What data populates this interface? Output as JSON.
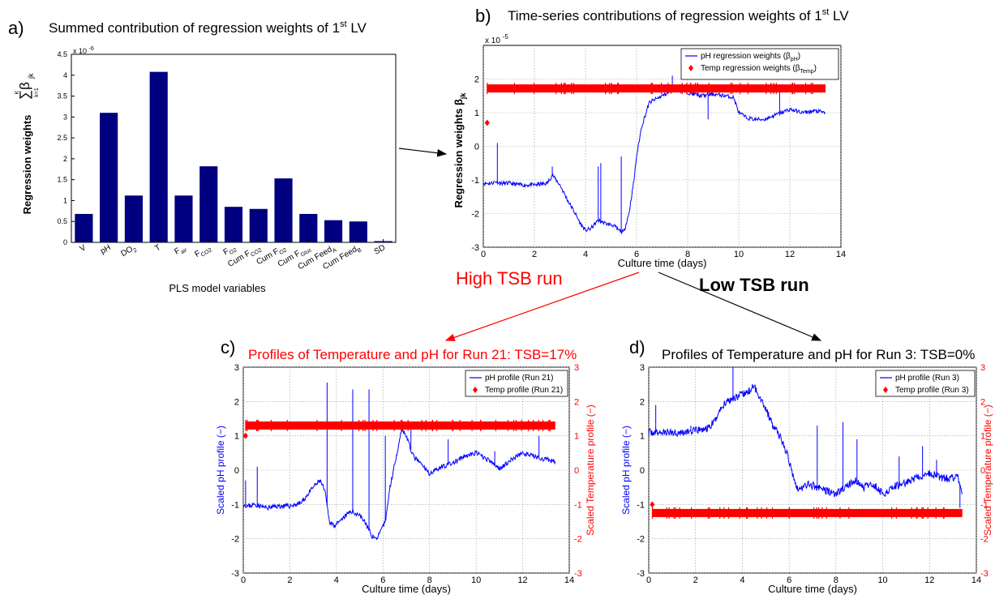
{
  "panels": {
    "a": {
      "letter": "a)",
      "title": "Summed contribution of regression weights of 1",
      "title_sup": "st",
      "title_end": " LV"
    },
    "b": {
      "letter": "b)",
      "title": "Time-series contributions of regression weights of 1",
      "title_sup": "st",
      "title_end": " LV"
    },
    "c": {
      "letter": "c)",
      "title": "Profiles of Temperature and pH  for Run 21: TSB=17%"
    },
    "d": {
      "letter": "d)",
      "title": "Profiles of Temperature and pH  for Run 3: TSB=0%"
    }
  },
  "annotations": {
    "high_tsb": "High TSB run",
    "low_tsb": "Low TSB run"
  },
  "colors": {
    "bar": "#000080",
    "ph": "#0000ff",
    "temp": "#ff0000",
    "red_text": "#ff0000"
  },
  "chart_data": [
    {
      "id": "a",
      "type": "bar",
      "xlabel": "PLS model variables",
      "ylabel": "Regression weights",
      "ylabel_formula": "∑β",
      "ylabel_sub": "jk",
      "ylabel_sum_top": "K",
      "ylabel_sum_bottom": "k=1",
      "exponent": "x 10",
      "exponent_power": "-6",
      "ylim": [
        0,
        4.5
      ],
      "yticks": [
        "0",
        "0.5",
        "1",
        "1.5",
        "2",
        "2.5",
        "3",
        "3.5",
        "4",
        "4.5"
      ],
      "categories": [
        {
          "main": "V",
          "sub": ""
        },
        {
          "main": "pH",
          "sub": ""
        },
        {
          "main": "DO",
          "sub": "2"
        },
        {
          "main": "T",
          "sub": ""
        },
        {
          "main": "F",
          "sub": "air"
        },
        {
          "main": "F",
          "sub": "CO2"
        },
        {
          "main": "F",
          "sub": "O2"
        },
        {
          "main": "Cum F",
          "sub": "CO2"
        },
        {
          "main": "Cum F",
          "sub": "O2"
        },
        {
          "main": "Cum F",
          "sub": "Gluc"
        },
        {
          "main": "Cum Feed",
          "sub": "A"
        },
        {
          "main": "Cum Feed",
          "sub": "B"
        },
        {
          "main": "SD",
          "sub": ""
        }
      ],
      "values": [
        0.68,
        3.1,
        1.12,
        4.08,
        1.12,
        1.82,
        0.85,
        0.8,
        1.53,
        0.68,
        0.53,
        0.5,
        0.03
      ]
    },
    {
      "id": "b",
      "type": "line",
      "xlabel": "Culture time (days)",
      "ylabel": "Regression weights β",
      "ylabel_sub": "jk",
      "exponent": "x 10",
      "exponent_power": "-5",
      "xlim": [
        0,
        14
      ],
      "ylim": [
        -3,
        3
      ],
      "xticks": [
        "0",
        "2",
        "4",
        "6",
        "8",
        "10",
        "12",
        "14"
      ],
      "yticks": [
        "-3",
        "-2",
        "-1",
        "0",
        "1",
        "2"
      ],
      "legend": [
        {
          "name": "pH regression weights  (β",
          "sub": "pH",
          "end": ")"
        },
        {
          "name": "Temp regression weights (β",
          "sub": "Temp",
          "end": ")"
        }
      ],
      "legend_position": "top-right",
      "series": [
        {
          "key": "ph",
          "x": [
            0,
            0.1,
            0.3,
            0.5,
            0.7,
            1,
            1.5,
            2,
            2.5,
            2.7,
            3,
            3.3,
            3.6,
            3.8,
            4,
            4.2,
            4.5,
            4.8,
            5.1,
            5.3,
            5.5,
            5.7,
            5.9,
            6,
            6.2,
            6.5,
            7,
            7.5,
            8,
            8.5,
            9,
            9.5,
            9.8,
            10,
            10.3,
            10.6,
            11,
            11.5,
            12,
            12.5,
            13,
            13.4
          ],
          "y": [
            -1.1,
            -1.1,
            -1.1,
            -1.05,
            -1.1,
            -1.1,
            -1.15,
            -1.15,
            -1.1,
            -0.85,
            -1.15,
            -1.6,
            -2.0,
            -2.3,
            -2.5,
            -2.45,
            -2.2,
            -2.3,
            -2.35,
            -2.5,
            -2.55,
            -2.0,
            -1.0,
            -0.3,
            0.6,
            1.3,
            1.5,
            1.7,
            1.6,
            1.5,
            1.55,
            1.5,
            1.45,
            1.0,
            0.85,
            0.8,
            0.8,
            0.95,
            1.1,
            1.0,
            1.05,
            1.0
          ]
        },
        {
          "key": "temp",
          "x": [
            0.15,
            13.4
          ],
          "y": [
            1.72,
            1.72
          ]
        }
      ],
      "ph_spikes": [
        [
          0.55,
          0.1
        ],
        [
          2.7,
          -0.6
        ],
        [
          4.5,
          -0.6
        ],
        [
          4.6,
          -0.5
        ],
        [
          5.4,
          -0.3
        ],
        [
          7.4,
          2.1
        ],
        [
          8.8,
          0.8
        ],
        [
          11.6,
          1.7
        ]
      ],
      "temp_outlier": [
        0.15,
        0.7
      ]
    },
    {
      "id": "c",
      "type": "line",
      "xlabel": "Culture time (days)",
      "ylabel": "Scaled pH profile (−)",
      "y2label": "Scaled Temperature profile (−)",
      "xlim": [
        0,
        14
      ],
      "ylim": [
        -3,
        3
      ],
      "xticks": [
        "0",
        "2",
        "4",
        "6",
        "8",
        "10",
        "12",
        "14"
      ],
      "yticks": [
        "-3",
        "-2",
        "-1",
        "0",
        "1",
        "2",
        "3"
      ],
      "legend": [
        {
          "name": "pH profile (Run 21)"
        },
        {
          "name": "Temp profile (Run 21)"
        }
      ],
      "legend_position": "top-right",
      "series": [
        {
          "key": "ph",
          "x": [
            0,
            0.2,
            0.5,
            1,
            1.5,
            2,
            2.5,
            3,
            3.3,
            3.5,
            3.7,
            3.9,
            4.1,
            4.3,
            4.6,
            5,
            5.3,
            5.5,
            5.7,
            5.9,
            6.1,
            6.3,
            6.6,
            6.8,
            7,
            7.3,
            7.6,
            8,
            8.5,
            9,
            9.5,
            10,
            10.5,
            11,
            11.5,
            12,
            12.5,
            13,
            13.4
          ],
          "y": [
            -1.0,
            -1.05,
            -1.0,
            -1.1,
            -1.05,
            -1.05,
            -0.95,
            -0.5,
            -0.3,
            -0.6,
            -1.5,
            -1.6,
            -1.55,
            -1.4,
            -1.2,
            -1.3,
            -1.6,
            -1.9,
            -2.0,
            -1.8,
            -1.5,
            -0.5,
            0.5,
            1.2,
            1.0,
            0.4,
            0.2,
            -0.1,
            0.1,
            0.2,
            0.4,
            0.5,
            0.3,
            0.05,
            0.3,
            0.5,
            0.4,
            0.3,
            0.25
          ]
        },
        {
          "key": "temp",
          "x": [
            0.1,
            13.4
          ],
          "y": [
            1.3,
            1.3
          ]
        }
      ],
      "ph_spikes": [
        [
          0.1,
          -0.3
        ],
        [
          0.6,
          0.1
        ],
        [
          3.6,
          2.55
        ],
        [
          4.7,
          2.35
        ],
        [
          5.4,
          2.35
        ],
        [
          6.1,
          1.0
        ],
        [
          7.2,
          1.4
        ],
        [
          8.8,
          0.9
        ],
        [
          10.8,
          0.55
        ],
        [
          12.7,
          1.0
        ]
      ],
      "temp_outlier": [
        0.1,
        1.0
      ]
    },
    {
      "id": "d",
      "type": "line",
      "xlabel": "Culture time (days)",
      "ylabel": "Scaled pH profile (−)",
      "y2label": "Scaled Temperature profile (−)",
      "xlim": [
        0,
        14
      ],
      "ylim": [
        -3,
        3
      ],
      "xticks": [
        "0",
        "2",
        "4",
        "6",
        "8",
        "10",
        "12",
        "14"
      ],
      "yticks": [
        "-3",
        "-2",
        "-1",
        "0",
        "1",
        "2",
        "3"
      ],
      "legend": [
        {
          "name": "pH profile (Run 3)"
        },
        {
          "name": "Temp profile (Run 3)"
        }
      ],
      "legend_position": "top-right",
      "series": [
        {
          "key": "ph",
          "x": [
            0,
            0.5,
            1,
            1.5,
            2,
            2.5,
            2.8,
            3,
            3.3,
            3.6,
            4,
            4.3,
            4.5,
            4.7,
            5,
            5.3,
            5.6,
            5.9,
            6.1,
            6.4,
            6.8,
            7.2,
            7.6,
            8,
            8.4,
            8.8,
            9.2,
            9.6,
            10,
            10.4,
            10.8,
            11.2,
            11.6,
            12,
            12.4,
            12.8,
            13.2,
            13.4
          ],
          "y": [
            1.1,
            1.1,
            1.1,
            1.1,
            1.15,
            1.2,
            1.4,
            1.7,
            2.0,
            2.1,
            2.2,
            2.3,
            2.45,
            2.2,
            1.8,
            1.3,
            1.0,
            0.5,
            0.0,
            -0.6,
            -0.4,
            -0.5,
            -0.6,
            -0.7,
            -0.5,
            -0.3,
            -0.5,
            -0.4,
            -0.7,
            -0.5,
            -0.4,
            -0.3,
            -0.2,
            -0.1,
            -0.2,
            -0.25,
            -0.2,
            -0.7
          ]
        },
        {
          "key": "temp",
          "x": [
            0.15,
            13.4
          ],
          "y": [
            -1.25,
            -1.25
          ]
        }
      ],
      "ph_spikes": [
        [
          0.3,
          1.9
        ],
        [
          1.8,
          1.3
        ],
        [
          3.6,
          3.0
        ],
        [
          4.3,
          2.4
        ],
        [
          7.2,
          1.3
        ],
        [
          8.3,
          1.4
        ],
        [
          8.9,
          0.9
        ],
        [
          10.7,
          0.4
        ],
        [
          11.7,
          0.7
        ],
        [
          12.3,
          0.3
        ],
        [
          13.3,
          -1.1
        ]
      ],
      "temp_outlier": [
        0.15,
        -1.0
      ]
    }
  ]
}
